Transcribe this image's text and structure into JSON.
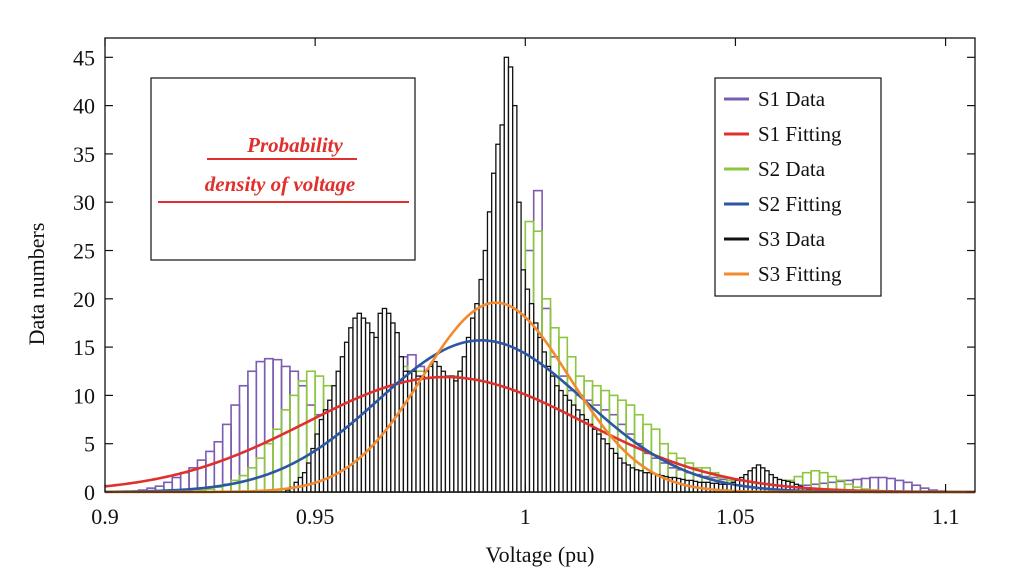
{
  "chart_data": {
    "type": "bar",
    "title": "",
    "xlabel": "Voltage (pu)",
    "ylabel": "Data numbers",
    "xlim": [
      0.9,
      1.107
    ],
    "ylim": [
      0,
      47
    ],
    "xticks": [
      0.9,
      0.95,
      1,
      1.05,
      1.1
    ],
    "xtick_labels": [
      "0.9",
      "0.95",
      "1",
      "1.05",
      "1.1"
    ],
    "yticks": [
      0,
      5,
      10,
      15,
      20,
      25,
      30,
      35,
      40,
      45
    ],
    "ytick_labels": [
      "0",
      "5",
      "10",
      "15",
      "20",
      "25",
      "30",
      "35",
      "40",
      "45"
    ],
    "annotation": {
      "line1": "Probability",
      "line2": "density of voltage"
    },
    "legend": {
      "position": "top-right",
      "entries": [
        {
          "label": "S1 Data",
          "color": "#7b5cb0"
        },
        {
          "label": "S1 Fitting",
          "color": "#e0302d"
        },
        {
          "label": "S2 Data",
          "color": "#8cc63e"
        },
        {
          "label": "S2 Fitting",
          "color": "#2c55a3"
        },
        {
          "label": "S3 Data",
          "color": "#111111"
        },
        {
          "label": "S3 Fitting",
          "color": "#f28a2e"
        }
      ]
    },
    "histograms": [
      {
        "name": "S1 Data",
        "color": "#7b5cb0",
        "bin_start": 0.9,
        "bin_width": 0.002,
        "values": [
          0,
          0,
          0,
          0,
          0.2,
          0.4,
          0.6,
          1,
          1.5,
          2,
          2.5,
          3.3,
          4.2,
          5.2,
          7,
          9,
          11,
          12.5,
          13.5,
          13.8,
          13.7,
          13,
          12.5,
          11,
          9,
          8,
          8.5,
          9.5,
          11,
          12,
          12.5,
          12,
          10.5,
          10.8,
          12,
          14,
          14.2,
          13,
          12.5,
          12,
          11.5,
          11,
          10.5,
          10,
          9.8,
          10.2,
          12,
          13.5,
          15,
          20,
          25,
          31.2,
          19,
          14,
          12,
          10.5,
          10,
          9.5,
          9,
          8.5,
          8,
          7,
          6,
          5,
          4,
          3.5,
          3,
          2.5,
          2.3,
          2,
          1.8,
          1.6,
          1.5,
          1.3,
          1.2,
          1.1,
          1,
          1,
          1,
          0.9,
          0.8,
          0.8,
          0.7,
          0.7,
          0.8,
          0.9,
          1,
          1.1,
          1.2,
          1.3,
          1.4,
          1.5,
          1.5,
          1.4,
          1.2,
          1,
          0.7,
          0.4,
          0.2,
          0.1,
          0,
          0,
          0
        ]
      },
      {
        "name": "S2 Data",
        "color": "#8cc63e",
        "bin_start": 0.9,
        "bin_width": 0.002,
        "values": [
          0,
          0,
          0,
          0,
          0,
          0,
          0,
          0,
          0,
          0,
          0.1,
          0.2,
          0.3,
          0.5,
          0.8,
          1.2,
          1.7,
          2.5,
          3.5,
          5,
          6.5,
          8.5,
          10,
          11.5,
          12.5,
          12,
          11,
          10.5,
          11,
          12.5,
          14,
          15.5,
          15.8,
          15,
          14,
          13,
          12.5,
          12.5,
          12,
          12,
          11.5,
          12,
          12.5,
          13,
          14,
          15,
          17,
          19,
          20.5,
          22,
          28,
          27,
          20,
          17,
          16,
          14,
          12,
          11.5,
          11,
          10.5,
          10,
          9.5,
          9,
          8,
          7,
          6.5,
          5,
          4,
          3.5,
          3,
          2.5,
          2.5,
          2,
          1.5,
          1.2,
          1,
          0.8,
          0.7,
          0.6,
          0.5,
          0.8,
          1.2,
          1.6,
          2,
          2.2,
          2,
          1.6,
          1.2,
          0.8,
          0.5,
          0.3,
          0.2,
          0.1,
          0,
          0,
          0,
          0,
          0,
          0,
          0,
          0,
          0,
          0
        ]
      },
      {
        "name": "S3 Data",
        "color": "#111111",
        "bin_start": 0.9,
        "bin_width": 0.001,
        "values": [
          0,
          0,
          0,
          0,
          0,
          0,
          0,
          0,
          0,
          0,
          0,
          0,
          0,
          0,
          0,
          0,
          0,
          0,
          0,
          0,
          0,
          0,
          0,
          0,
          0,
          0,
          0,
          0,
          0,
          0,
          0,
          0,
          0,
          0,
          0,
          0,
          0,
          0,
          0,
          0,
          0,
          0,
          0,
          0.2,
          0.5,
          1,
          1.5,
          2,
          3,
          4.5,
          6,
          7.5,
          8.5,
          9.5,
          11,
          12.5,
          14,
          15.5,
          17,
          18,
          18.5,
          18,
          17.5,
          16.5,
          16,
          18.5,
          19,
          18.5,
          17.5,
          16.5,
          14,
          12.5,
          12.5,
          12.5,
          12,
          12,
          12.5,
          13,
          13.5,
          13,
          12.5,
          12,
          12,
          11.5,
          12.5,
          14,
          16,
          18,
          19.5,
          22,
          25,
          29,
          33,
          36,
          38,
          45,
          44,
          40,
          30,
          23,
          21,
          19.5,
          17.5,
          16,
          14.5,
          13,
          12,
          11,
          10.5,
          10,
          9.5,
          9,
          8.5,
          8,
          7.5,
          7,
          6.5,
          6,
          5.5,
          5,
          4.5,
          4,
          3.5,
          3,
          2.8,
          2.5,
          2.3,
          2.2,
          2,
          2,
          1.9,
          1.8,
          1.7,
          1.6,
          1.5,
          1.5,
          1.4,
          1.3,
          1.2,
          1.2,
          1.1,
          1,
          1,
          1,
          0.9,
          0.9,
          0.8,
          0.8,
          0.8,
          1,
          1.2,
          1.5,
          1.8,
          2.2,
          2.5,
          2.8,
          2.5,
          2.2,
          1.8,
          1.5,
          1.3,
          1.2,
          1.1,
          1,
          0.8,
          0.6,
          0.4,
          0.2,
          0.1,
          0,
          0,
          0,
          0,
          0,
          0,
          0,
          0,
          0,
          0,
          0,
          0,
          0,
          0,
          0,
          0,
          0,
          0,
          0,
          0,
          0,
          0,
          0,
          0,
          0,
          0,
          0,
          0,
          0,
          0,
          0,
          0,
          0,
          0,
          0,
          0,
          0,
          0,
          0,
          0,
          0
        ]
      }
    ],
    "fits": [
      {
        "name": "S1 Fitting",
        "color": "#e0302d",
        "mean": 0.981,
        "sd": 0.033,
        "peak": 11.9
      },
      {
        "name": "S2 Fitting",
        "color": "#2c55a3",
        "mean": 0.9895,
        "sd": 0.0245,
        "peak": 15.7
      },
      {
        "name": "S3 Fitting",
        "color": "#f28a2e",
        "mean": 0.993,
        "sd": 0.0175,
        "peak": 19.6
      }
    ]
  }
}
